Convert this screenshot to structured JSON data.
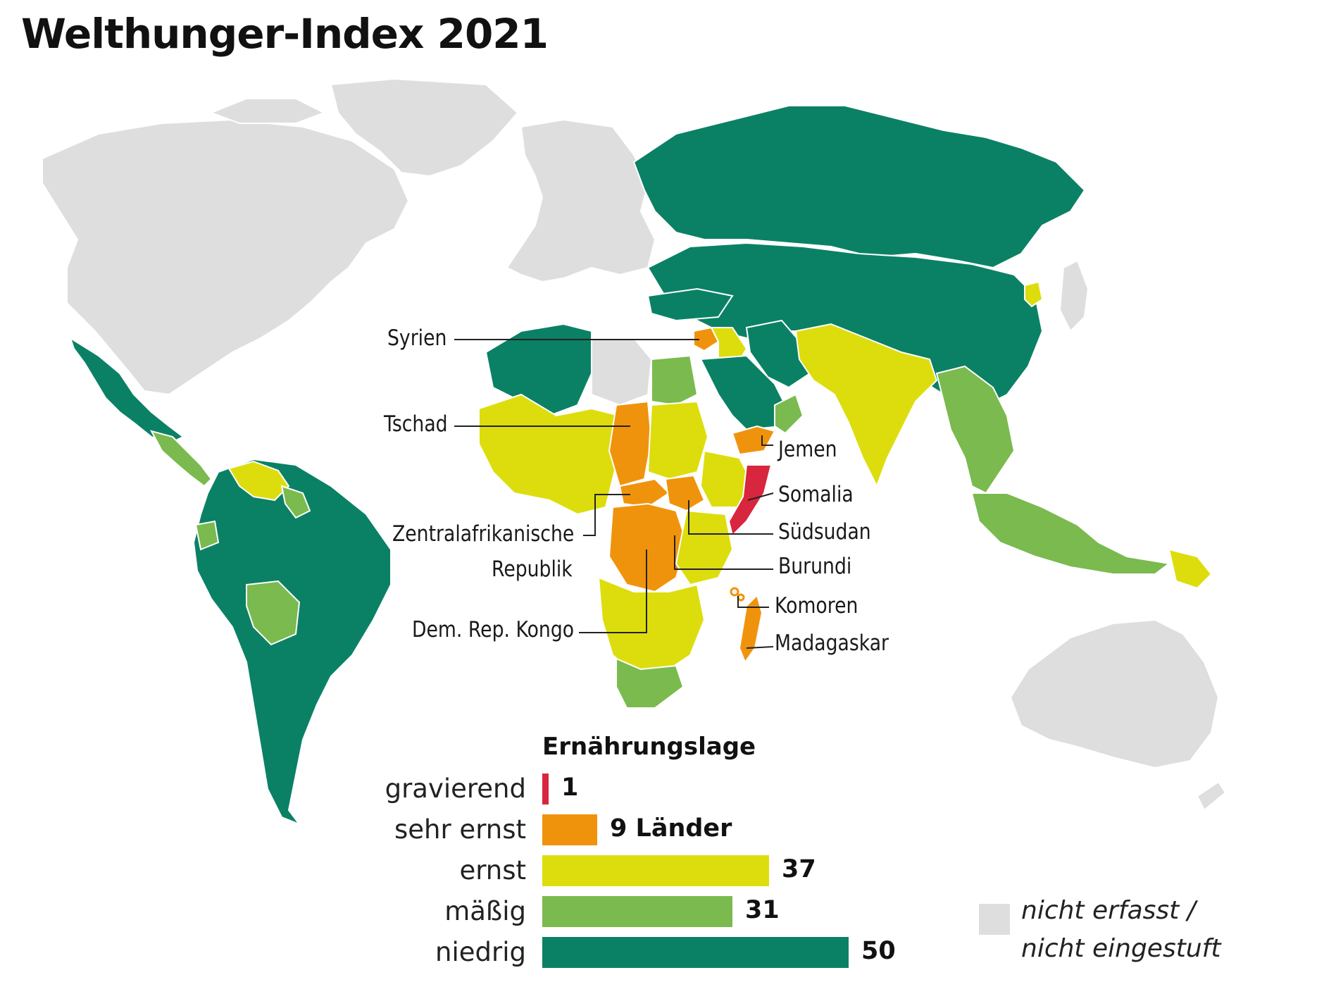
{
  "title": "Welthunger-Index 2021",
  "colors": {
    "gravierend": "#d7263d",
    "sehr_ernst": "#f0930c",
    "ernst": "#dddd0e",
    "maessig": "#7aba4e",
    "niedrig": "#0a8165",
    "nicht_erfasst": "#dedede"
  },
  "country_labels": {
    "syrien": "Syrien",
    "tschad": "Tschad",
    "jemen": "Jemen",
    "somalia": "Somalia",
    "suedsudan": "Südsudan",
    "zar_line1": "Zentralafrikanische",
    "zar_line2": "Republik",
    "burundi": "Burundi",
    "komoren": "Komoren",
    "drkongo": "Dem. Rep. Kongo",
    "madagaskar": "Madagaskar"
  },
  "legend": {
    "title": "Ernährungslage",
    "items": [
      {
        "label": "gravierend",
        "count": 1,
        "value_text": "1",
        "color": "#d7263d"
      },
      {
        "label": "sehr ernst",
        "count": 9,
        "value_text": "9 Länder",
        "color": "#f0930c"
      },
      {
        "label": "ernst",
        "count": 37,
        "value_text": "37",
        "color": "#dddd0e"
      },
      {
        "label": "mäßig",
        "count": 31,
        "value_text": "31",
        "color": "#7aba4e"
      },
      {
        "label": "niedrig",
        "count": 50,
        "value_text": "50",
        "color": "#0a8165"
      }
    ],
    "not_rated_line1": "nicht erfasst /",
    "not_rated_line2": "nicht eingestuft"
  }
}
